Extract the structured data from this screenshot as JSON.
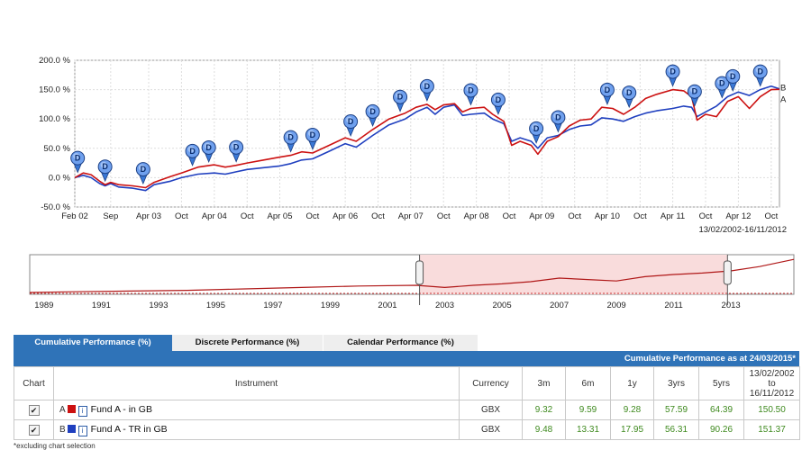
{
  "chart_data": [
    {
      "type": "line",
      "y_ticks": [
        "200.0 %",
        "150.0 %",
        "100.0 %",
        "50.0 %",
        "0.0 %",
        "-50.0 %"
      ],
      "y_tick_values": [
        200,
        150,
        100,
        50,
        0,
        -50
      ],
      "ylim": [
        -50,
        200
      ],
      "xlim": [
        "2002-02-13",
        "2012-11-16"
      ],
      "x_ticks": [
        {
          "label": "Feb 02",
          "date": "2002-02-13"
        },
        {
          "label": "Sep",
          "date": "2002-09-01"
        },
        {
          "label": "Apr 03",
          "date": "2003-04-01"
        },
        {
          "label": "Oct",
          "date": "2003-10-01"
        },
        {
          "label": "Apr 04",
          "date": "2004-04-01"
        },
        {
          "label": "Oct",
          "date": "2004-10-01"
        },
        {
          "label": "Apr 05",
          "date": "2005-04-01"
        },
        {
          "label": "Oct",
          "date": "2005-10-01"
        },
        {
          "label": "Apr 06",
          "date": "2006-04-01"
        },
        {
          "label": "Oct",
          "date": "2006-10-01"
        },
        {
          "label": "Apr 07",
          "date": "2007-04-01"
        },
        {
          "label": "Oct",
          "date": "2007-10-01"
        },
        {
          "label": "Apr 08",
          "date": "2008-04-01"
        },
        {
          "label": "Oct",
          "date": "2008-10-01"
        },
        {
          "label": "Apr 09",
          "date": "2009-04-01"
        },
        {
          "label": "Oct",
          "date": "2009-10-01"
        },
        {
          "label": "Apr 10",
          "date": "2010-04-01"
        },
        {
          "label": "Oct",
          "date": "2010-10-01"
        },
        {
          "label": "Apr 11",
          "date": "2011-04-01"
        },
        {
          "label": "Oct",
          "date": "2011-10-01"
        },
        {
          "label": "Apr 12",
          "date": "2012-04-01"
        },
        {
          "label": "Oct",
          "date": "2012-10-01"
        }
      ],
      "range_label": "13/02/2002-16/11/2012",
      "grid": true,
      "series": [
        {
          "end_label": "A",
          "color": "#cc1111",
          "points": [
            [
              "2002-02-13",
              0
            ],
            [
              "2002-04-01",
              8
            ],
            [
              "2002-05-15",
              5
            ],
            [
              "2002-07-01",
              -6
            ],
            [
              "2002-08-01",
              -12
            ],
            [
              "2002-09-01",
              -8
            ],
            [
              "2002-10-15",
              -12
            ],
            [
              "2003-01-01",
              -14
            ],
            [
              "2003-03-15",
              -17
            ],
            [
              "2003-05-01",
              -8
            ],
            [
              "2003-08-01",
              2
            ],
            [
              "2003-10-01",
              8
            ],
            [
              "2004-01-01",
              18
            ],
            [
              "2004-04-01",
              22
            ],
            [
              "2004-06-01",
              18
            ],
            [
              "2004-08-01",
              21
            ],
            [
              "2004-10-01",
              25
            ],
            [
              "2005-01-01",
              30
            ],
            [
              "2005-04-01",
              35
            ],
            [
              "2005-06-01",
              38
            ],
            [
              "2005-08-01",
              44
            ],
            [
              "2005-10-01",
              42
            ],
            [
              "2006-01-01",
              55
            ],
            [
              "2006-04-01",
              68
            ],
            [
              "2006-06-01",
              62
            ],
            [
              "2006-09-01",
              82
            ],
            [
              "2006-12-01",
              100
            ],
            [
              "2007-03-01",
              110
            ],
            [
              "2007-05-01",
              120
            ],
            [
              "2007-07-01",
              125
            ],
            [
              "2007-08-15",
              116
            ],
            [
              "2007-10-01",
              124
            ],
            [
              "2007-12-01",
              126
            ],
            [
              "2008-01-15",
              112
            ],
            [
              "2008-03-01",
              118
            ],
            [
              "2008-05-15",
              120
            ],
            [
              "2008-07-01",
              108
            ],
            [
              "2008-09-01",
              96
            ],
            [
              "2008-10-15",
              55
            ],
            [
              "2008-12-01",
              62
            ],
            [
              "2009-02-01",
              55
            ],
            [
              "2009-03-10",
              40
            ],
            [
              "2009-05-01",
              62
            ],
            [
              "2009-07-01",
              70
            ],
            [
              "2009-09-01",
              88
            ],
            [
              "2009-11-01",
              98
            ],
            [
              "2010-01-01",
              100
            ],
            [
              "2010-03-01",
              120
            ],
            [
              "2010-05-01",
              118
            ],
            [
              "2010-07-01",
              108
            ],
            [
              "2010-09-01",
              120
            ],
            [
              "2010-11-01",
              135
            ],
            [
              "2011-01-01",
              142
            ],
            [
              "2011-04-01",
              150
            ],
            [
              "2011-06-01",
              148
            ],
            [
              "2011-07-15",
              138
            ],
            [
              "2011-08-15",
              98
            ],
            [
              "2011-10-01",
              108
            ],
            [
              "2011-12-01",
              104
            ],
            [
              "2012-02-01",
              130
            ],
            [
              "2012-04-01",
              138
            ],
            [
              "2012-06-01",
              118
            ],
            [
              "2012-08-01",
              138
            ],
            [
              "2012-10-01",
              150
            ],
            [
              "2012-11-16",
              150.5
            ]
          ]
        },
        {
          "end_label": "B",
          "color": "#1f3fbf",
          "points": [
            [
              "2002-02-13",
              0
            ],
            [
              "2002-04-01",
              4
            ],
            [
              "2002-05-15",
              0
            ],
            [
              "2002-07-01",
              -10
            ],
            [
              "2002-08-01",
              -14
            ],
            [
              "2002-09-01",
              -10
            ],
            [
              "2002-10-15",
              -16
            ],
            [
              "2003-01-01",
              -18
            ],
            [
              "2003-03-15",
              -22
            ],
            [
              "2003-05-01",
              -12
            ],
            [
              "2003-08-01",
              -6
            ],
            [
              "2003-10-01",
              0
            ],
            [
              "2004-01-01",
              6
            ],
            [
              "2004-04-01",
              8
            ],
            [
              "2004-06-01",
              6
            ],
            [
              "2004-08-01",
              10
            ],
            [
              "2004-10-01",
              14
            ],
            [
              "2005-01-01",
              17
            ],
            [
              "2005-04-01",
              20
            ],
            [
              "2005-06-01",
              24
            ],
            [
              "2005-08-01",
              30
            ],
            [
              "2005-10-01",
              32
            ],
            [
              "2006-01-01",
              45
            ],
            [
              "2006-04-01",
              58
            ],
            [
              "2006-06-01",
              52
            ],
            [
              "2006-09-01",
              72
            ],
            [
              "2006-12-01",
              90
            ],
            [
              "2007-03-01",
              100
            ],
            [
              "2007-05-01",
              112
            ],
            [
              "2007-07-01",
              120
            ],
            [
              "2007-08-15",
              108
            ],
            [
              "2007-10-01",
              120
            ],
            [
              "2007-12-01",
              124
            ],
            [
              "2008-01-15",
              106
            ],
            [
              "2008-03-01",
              108
            ],
            [
              "2008-05-15",
              110
            ],
            [
              "2008-07-01",
              100
            ],
            [
              "2008-09-01",
              92
            ],
            [
              "2008-10-15",
              62
            ],
            [
              "2008-12-01",
              68
            ],
            [
              "2009-02-01",
              62
            ],
            [
              "2009-03-10",
              50
            ],
            [
              "2009-05-01",
              68
            ],
            [
              "2009-07-01",
              72
            ],
            [
              "2009-09-01",
              82
            ],
            [
              "2009-11-01",
              88
            ],
            [
              "2010-01-01",
              90
            ],
            [
              "2010-03-01",
              102
            ],
            [
              "2010-05-01",
              100
            ],
            [
              "2010-07-01",
              96
            ],
            [
              "2010-09-01",
              104
            ],
            [
              "2010-11-01",
              110
            ],
            [
              "2011-01-01",
              114
            ],
            [
              "2011-04-01",
              118
            ],
            [
              "2011-06-01",
              122
            ],
            [
              "2011-07-15",
              120
            ],
            [
              "2011-08-15",
              104
            ],
            [
              "2011-10-01",
              112
            ],
            [
              "2011-12-01",
              122
            ],
            [
              "2012-02-01",
              138
            ],
            [
              "2012-04-01",
              146
            ],
            [
              "2012-06-01",
              140
            ],
            [
              "2012-08-01",
              150
            ],
            [
              "2012-10-01",
              156
            ],
            [
              "2012-11-16",
              151.37
            ]
          ]
        }
      ],
      "dividend_markers": {
        "label": "D",
        "dates": [
          "2002-03-01",
          "2002-08-01",
          "2003-03-01",
          "2003-12-01",
          "2004-03-01",
          "2004-08-01",
          "2005-06-01",
          "2005-10-01",
          "2006-05-01",
          "2006-09-01",
          "2007-02-01",
          "2007-07-01",
          "2008-03-01",
          "2008-08-01",
          "2009-03-01",
          "2009-07-01",
          "2010-04-01",
          "2010-08-01",
          "2011-04-01",
          "2011-08-01",
          "2012-01-01",
          "2012-03-01",
          "2012-08-01"
        ]
      }
    },
    {
      "type": "area",
      "x_ticks": [
        "1989",
        "1991",
        "1993",
        "1995",
        "1997",
        "1999",
        "2001",
        "2003",
        "2005",
        "2007",
        "2009",
        "2011",
        "2013"
      ],
      "xlim": [
        1988.5,
        2015.2
      ],
      "selection": [
        2002.12,
        2012.88
      ],
      "color": "#b01818",
      "points": [
        [
          1988.5,
          0
        ],
        [
          1990,
          1
        ],
        [
          1992,
          2
        ],
        [
          1994,
          3
        ],
        [
          1996,
          5
        ],
        [
          1998,
          7
        ],
        [
          2000,
          9
        ],
        [
          2002,
          10
        ],
        [
          2003,
          7
        ],
        [
          2004,
          10
        ],
        [
          2005,
          12
        ],
        [
          2006,
          15
        ],
        [
          2007,
          20
        ],
        [
          2008,
          18
        ],
        [
          2009,
          16
        ],
        [
          2010,
          22
        ],
        [
          2011,
          25
        ],
        [
          2012,
          27
        ],
        [
          2013,
          30
        ],
        [
          2014,
          36
        ],
        [
          2015.2,
          46
        ]
      ]
    }
  ],
  "tabs": [
    "Cumulative Performance (%)",
    "Discrete Performance (%)",
    "Calendar Performance (%)"
  ],
  "banner": "Cumulative Performance as at 24/03/2015*",
  "table": {
    "headers": {
      "chart": "Chart",
      "instrument": "Instrument",
      "currency": "Currency",
      "m3": "3m",
      "m6": "6m",
      "y1": "1y",
      "y3": "3yrs",
      "y5": "5yrs",
      "custom": "13/02/2002\nto\n16/11/2012"
    },
    "rows": [
      {
        "checked": "✔",
        "letter": "A",
        "swatch_color": "#cc1111",
        "info_icon": "info-icon",
        "name": "Fund A - in GB",
        "currency": "GBX",
        "m3": "9.32",
        "m6": "9.59",
        "y1": "9.28",
        "y3": "57.59",
        "y5": "64.39",
        "custom": "150.50"
      },
      {
        "checked": "✔",
        "letter": "B",
        "swatch_color": "#1f3fbf",
        "info_icon": "info-icon",
        "name": "Fund A - TR in GB",
        "currency": "GBX",
        "m3": "9.48",
        "m6": "13.31",
        "y1": "17.95",
        "y3": "56.31",
        "y5": "90.26",
        "custom": "151.37"
      }
    ]
  },
  "footnote": "*excluding chart selection"
}
